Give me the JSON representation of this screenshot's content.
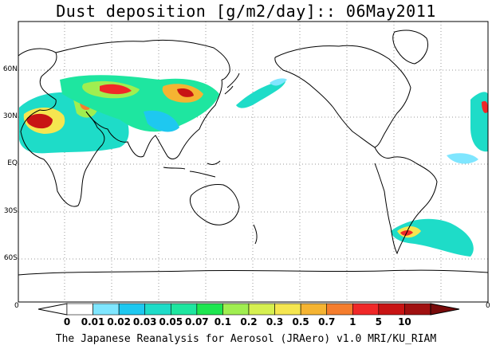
{
  "title": "Dust deposition [g/m2/day]:: 06May2011",
  "credit": "The Japanese Reanalysis for Aerosol (JRAero) v1.0 MRI/KU_RIAM",
  "lat_labels": [
    "60N",
    "30N",
    "EQ",
    "30S",
    "60S"
  ],
  "edge_labels": {
    "left": "0",
    "right": "0"
  },
  "colorbar": {
    "ticks": [
      "0",
      "0.01",
      "0.02",
      "0.03",
      "0.05",
      "0.07",
      "0.1",
      "0.2",
      "0.3",
      "0.5",
      "0.7",
      "1",
      "5",
      "10"
    ],
    "under_color": "#ffffff",
    "colors": [
      "#ffffff",
      "#7fe6ff",
      "#1ec8f0",
      "#1edcc8",
      "#1ee6a0",
      "#1ee650",
      "#a0ee50",
      "#d6f050",
      "#f5e650",
      "#f5b432",
      "#f57d2d",
      "#f02828",
      "#c81414",
      "#a01010"
    ],
    "over_color": "#780a0a"
  },
  "map": {
    "background": "#ffffff",
    "coastline_color": "#000000",
    "grid_color": "#999999",
    "grid_style": "dotted",
    "projection": "pacific-centred cylindrical"
  }
}
